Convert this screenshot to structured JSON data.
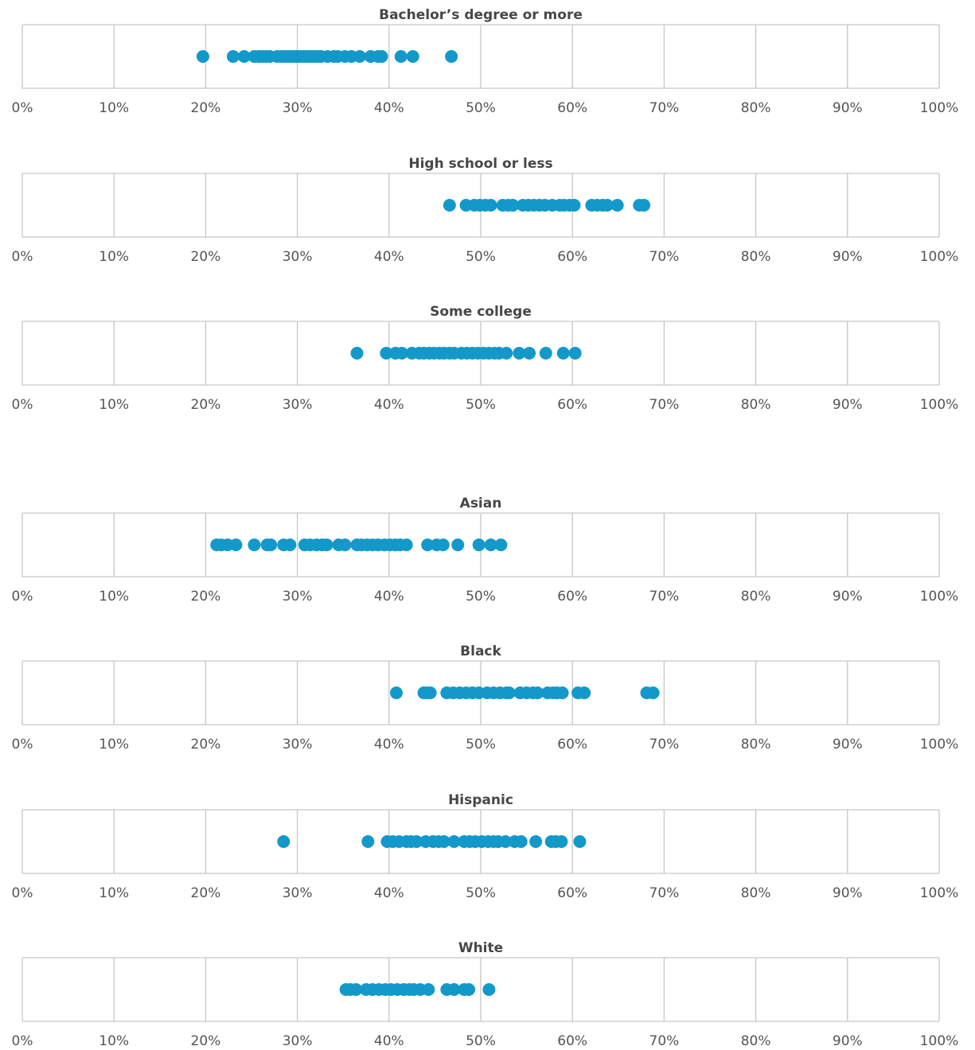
{
  "chart_data": [
    {
      "type": "scatter",
      "title": "Bachelor’s degree or more",
      "color": "#1399c9",
      "xlim": [
        0,
        100
      ],
      "grid": true,
      "xticks": [
        {
          "value": 0,
          "label": "0%"
        },
        {
          "value": 10,
          "label": "10%"
        },
        {
          "value": 20,
          "label": "20%"
        },
        {
          "value": 30,
          "label": "30%"
        },
        {
          "value": 40,
          "label": "40%"
        },
        {
          "value": 50,
          "label": "50%"
        },
        {
          "value": 60,
          "label": "60%"
        },
        {
          "value": 70,
          "label": "70%"
        },
        {
          "value": 80,
          "label": "80%"
        },
        {
          "value": 90,
          "label": "90%"
        },
        {
          "value": 100,
          "label": "100%"
        }
      ],
      "values": [
        19.7,
        23.0,
        24.2,
        25.3,
        25.8,
        26.2,
        26.6,
        27.0,
        27.8,
        28.3,
        28.7,
        29.1,
        29.5,
        29.9,
        30.3,
        30.7,
        31.0,
        31.4,
        31.8,
        32.2,
        32.6,
        33.3,
        34.0,
        34.4,
        35.2,
        35.9,
        36.8,
        38.0,
        38.8,
        39.2,
        41.3,
        42.6,
        46.8
      ]
    },
    {
      "type": "scatter",
      "title": "High school or less",
      "color": "#1399c9",
      "xlim": [
        0,
        100
      ],
      "grid": true,
      "xticks": [
        {
          "value": 0,
          "label": "0%"
        },
        {
          "value": 10,
          "label": "10%"
        },
        {
          "value": 20,
          "label": "20%"
        },
        {
          "value": 30,
          "label": "30%"
        },
        {
          "value": 40,
          "label": "40%"
        },
        {
          "value": 50,
          "label": "50%"
        },
        {
          "value": 60,
          "label": "60%"
        },
        {
          "value": 70,
          "label": "70%"
        },
        {
          "value": 80,
          "label": "80%"
        },
        {
          "value": 90,
          "label": "90%"
        },
        {
          "value": 100,
          "label": "100%"
        }
      ],
      "values": [
        46.6,
        48.4,
        49.3,
        49.9,
        50.5,
        51.1,
        52.4,
        53.0,
        53.5,
        54.6,
        55.2,
        55.8,
        56.4,
        57.0,
        57.8,
        58.6,
        59.1,
        59.7,
        60.2,
        62.1,
        62.7,
        63.3,
        63.8,
        64.9,
        67.3,
        67.8
      ]
    },
    {
      "type": "scatter",
      "title": "Some college",
      "color": "#1399c9",
      "xlim": [
        0,
        100
      ],
      "grid": true,
      "xticks": [
        {
          "value": 0,
          "label": "0%"
        },
        {
          "value": 10,
          "label": "10%"
        },
        {
          "value": 20,
          "label": "20%"
        },
        {
          "value": 30,
          "label": "30%"
        },
        {
          "value": 40,
          "label": "40%"
        },
        {
          "value": 50,
          "label": "50%"
        },
        {
          "value": 60,
          "label": "60%"
        },
        {
          "value": 70,
          "label": "70%"
        },
        {
          "value": 80,
          "label": "80%"
        },
        {
          "value": 90,
          "label": "90%"
        },
        {
          "value": 100,
          "label": "100%"
        }
      ],
      "values": [
        36.5,
        39.7,
        40.7,
        41.4,
        42.5,
        43.3,
        43.8,
        44.4,
        44.9,
        45.5,
        46.0,
        46.6,
        47.1,
        47.9,
        48.5,
        49.1,
        49.7,
        50.3,
        50.9,
        51.5,
        52.0,
        52.8,
        54.2,
        55.3,
        57.1,
        59.0,
        60.3
      ]
    },
    {
      "type": "scatter",
      "title": "Asian",
      "color": "#1399c9",
      "xlim": [
        0,
        100
      ],
      "grid": true,
      "xticks": [
        {
          "value": 0,
          "label": "0%"
        },
        {
          "value": 10,
          "label": "10%"
        },
        {
          "value": 20,
          "label": "20%"
        },
        {
          "value": 30,
          "label": "30%"
        },
        {
          "value": 40,
          "label": "40%"
        },
        {
          "value": 50,
          "label": "50%"
        },
        {
          "value": 60,
          "label": "60%"
        },
        {
          "value": 70,
          "label": "70%"
        },
        {
          "value": 80,
          "label": "80%"
        },
        {
          "value": 90,
          "label": "90%"
        },
        {
          "value": 100,
          "label": "100%"
        }
      ],
      "values": [
        21.2,
        21.7,
        22.4,
        23.3,
        25.3,
        26.7,
        27.1,
        28.5,
        29.2,
        30.8,
        31.4,
        32.1,
        32.7,
        33.2,
        34.5,
        35.2,
        36.5,
        37.0,
        37.6,
        38.2,
        38.8,
        39.5,
        40.1,
        40.7,
        41.2,
        41.9,
        44.2,
        45.2,
        45.9,
        47.5,
        49.8,
        51.1,
        52.2
      ]
    },
    {
      "type": "scatter",
      "title": "Black",
      "color": "#1399c9",
      "xlim": [
        0,
        100
      ],
      "grid": true,
      "xticks": [
        {
          "value": 0,
          "label": "0%"
        },
        {
          "value": 10,
          "label": "10%"
        },
        {
          "value": 20,
          "label": "20%"
        },
        {
          "value": 30,
          "label": "30%"
        },
        {
          "value": 40,
          "label": "40%"
        },
        {
          "value": 50,
          "label": "50%"
        },
        {
          "value": 60,
          "label": "60%"
        },
        {
          "value": 70,
          "label": "70%"
        },
        {
          "value": 80,
          "label": "80%"
        },
        {
          "value": 90,
          "label": "90%"
        },
        {
          "value": 100,
          "label": "100%"
        }
      ],
      "values": [
        40.8,
        43.8,
        44.2,
        44.5,
        46.3,
        47.0,
        47.7,
        48.4,
        49.1,
        49.8,
        50.7,
        51.4,
        52.1,
        52.8,
        53.1,
        54.3,
        55.0,
        55.7,
        56.2,
        57.3,
        57.9,
        58.3,
        58.9,
        60.6,
        61.3,
        68.1,
        68.8
      ]
    },
    {
      "type": "scatter",
      "title": "Hispanic",
      "color": "#1399c9",
      "xlim": [
        0,
        100
      ],
      "grid": true,
      "xticks": [
        {
          "value": 0,
          "label": "0%"
        },
        {
          "value": 10,
          "label": "10%"
        },
        {
          "value": 20,
          "label": "20%"
        },
        {
          "value": 30,
          "label": "30%"
        },
        {
          "value": 40,
          "label": "40%"
        },
        {
          "value": 50,
          "label": "50%"
        },
        {
          "value": 60,
          "label": "60%"
        },
        {
          "value": 70,
          "label": "70%"
        },
        {
          "value": 80,
          "label": "80%"
        },
        {
          "value": 90,
          "label": "90%"
        },
        {
          "value": 100,
          "label": "100%"
        }
      ],
      "values": [
        28.5,
        37.7,
        39.8,
        40.4,
        41.1,
        41.9,
        42.4,
        43.0,
        44.0,
        44.8,
        45.4,
        46.0,
        47.1,
        48.2,
        48.8,
        49.4,
        50.1,
        50.8,
        51.4,
        51.9,
        52.7,
        53.7,
        54.4,
        56.0,
        57.7,
        58.2,
        58.8,
        60.8
      ]
    },
    {
      "type": "scatter",
      "title": "White",
      "color": "#1399c9",
      "xlim": [
        0,
        100
      ],
      "grid": true,
      "xticks": [
        {
          "value": 0,
          "label": "0%"
        },
        {
          "value": 10,
          "label": "10%"
        },
        {
          "value": 20,
          "label": "20%"
        },
        {
          "value": 30,
          "label": "30%"
        },
        {
          "value": 40,
          "label": "40%"
        },
        {
          "value": 50,
          "label": "50%"
        },
        {
          "value": 60,
          "label": "60%"
        },
        {
          "value": 70,
          "label": "70%"
        },
        {
          "value": 80,
          "label": "80%"
        },
        {
          "value": 90,
          "label": "90%"
        },
        {
          "value": 100,
          "label": "100%"
        }
      ],
      "values": [
        35.3,
        35.8,
        36.4,
        37.5,
        38.2,
        38.9,
        39.6,
        40.2,
        40.9,
        41.6,
        42.2,
        42.7,
        43.4,
        44.3,
        46.3,
        47.1,
        48.2,
        48.7,
        50.9
      ]
    }
  ]
}
